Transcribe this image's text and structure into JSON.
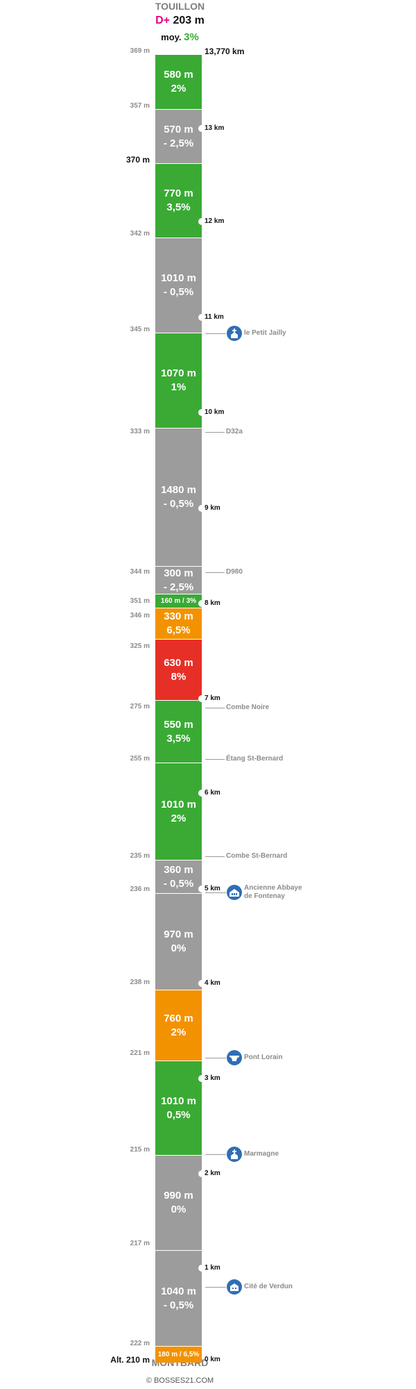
{
  "header": {
    "start_name": "TOUILLON",
    "dplus_label": "D+",
    "dplus_value": "203 m",
    "avg_label": "moy.",
    "avg_value": "3%"
  },
  "footer": {
    "end_name": "MONTBARD",
    "credit": "© BOSSES21.COM"
  },
  "colors": {
    "green": "#3aaa35",
    "grey": "#9d9c9c",
    "orange": "#f39200",
    "red": "#e63027"
  },
  "segments": [
    {
      "length": "580 m",
      "grade": "2%",
      "color": "green"
    },
    {
      "length": "570 m",
      "grade": "- 2,5%",
      "color": "grey"
    },
    {
      "length": "770 m",
      "grade": "3,5%",
      "color": "green"
    },
    {
      "length": "1010 m",
      "grade": "- 0,5%",
      "color": "grey"
    },
    {
      "length": "1070 m",
      "grade": "1%",
      "color": "green"
    },
    {
      "length": "1480 m",
      "grade": "- 0,5%",
      "color": "grey"
    },
    {
      "length": "300 m",
      "grade": "- 2,5%",
      "color": "grey"
    },
    {
      "label": "160 m / 3%",
      "color": "green"
    },
    {
      "length": "330 m",
      "grade": "6,5%",
      "color": "orange"
    },
    {
      "length": "630 m",
      "grade": "8%",
      "color": "red"
    },
    {
      "length": "550 m",
      "grade": "3,5%",
      "color": "green"
    },
    {
      "length": "1010 m",
      "grade": "2%",
      "color": "green"
    },
    {
      "length": "360 m",
      "grade": "- 0,5%",
      "color": "grey"
    },
    {
      "length": "970 m",
      "grade": "0%",
      "color": "grey"
    },
    {
      "length": "760 m",
      "grade": "2%",
      "color": "orange"
    },
    {
      "length": "1010 m",
      "grade": "0,5%",
      "color": "green"
    },
    {
      "length": "990 m",
      "grade": "0%",
      "color": "grey"
    },
    {
      "length": "1040 m",
      "grade": "- 0,5%",
      "color": "grey"
    },
    {
      "label": "180 m / 6,5%",
      "color": "orange"
    }
  ],
  "altitudes": [
    "369 m",
    "357 m",
    "370 m",
    "342 m",
    "345 m",
    "333 m",
    "344 m",
    "351 m",
    "346 m",
    "325 m",
    "275 m",
    "255 m",
    "235 m",
    "236 m",
    "238 m",
    "221 m",
    "215 m",
    "217 m",
    "222 m",
    "Alt. 210 m"
  ],
  "km_marks": [
    "13,770 km",
    "13 km",
    "12 km",
    "11 km",
    "10 km",
    "9 km",
    "8 km",
    "7 km",
    "6 km",
    "5 km",
    "4 km",
    "3 km",
    "2 km",
    "1 km",
    "0 km"
  ],
  "landmarks": [
    {
      "label": "le Petit Jailly",
      "icon": "church-icon"
    },
    {
      "label": "D32a"
    },
    {
      "label": "D980"
    },
    {
      "label": "Combe Noire"
    },
    {
      "label": "Étang St-Bernard"
    },
    {
      "label": "Combe St-Bernard"
    },
    {
      "label": "Ancienne Abbaye de Fontenay",
      "icon": "abbey-icon"
    },
    {
      "label": "Pont Lorain",
      "icon": "bridge-icon"
    },
    {
      "label": "Marmagne",
      "icon": "church-icon"
    },
    {
      "label": "Cité de Verdun",
      "icon": "building-icon"
    }
  ]
}
